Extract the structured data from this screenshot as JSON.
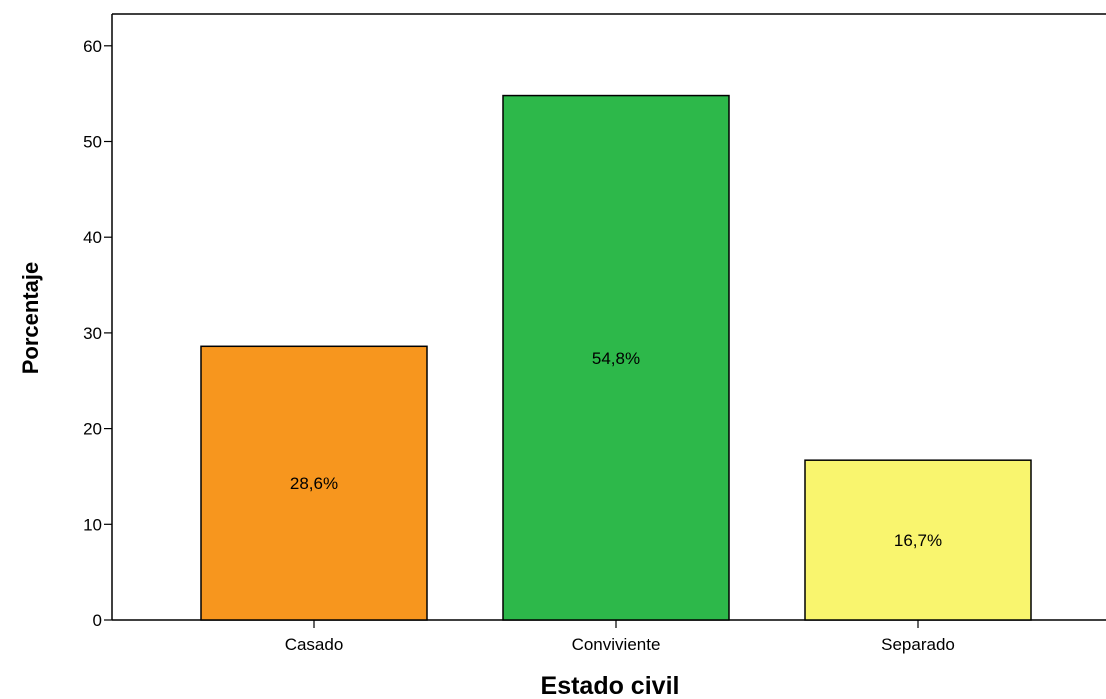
{
  "chart_data": {
    "type": "bar",
    "xlabel": "Estado civil",
    "ylabel": "Porcentaje",
    "categories": [
      "Casado",
      "Conviviente",
      "Separado"
    ],
    "values": [
      28.6,
      54.8,
      16.7
    ],
    "data_labels": [
      "28,6%",
      "54,8%",
      "16,7%"
    ],
    "colors": [
      "#f7961e",
      "#2db84a",
      "#f9f56e"
    ],
    "ylim": [
      0,
      62
    ],
    "yticks": [
      0,
      10,
      20,
      30,
      40,
      50,
      60
    ],
    "grid": false,
    "legend": "none"
  }
}
